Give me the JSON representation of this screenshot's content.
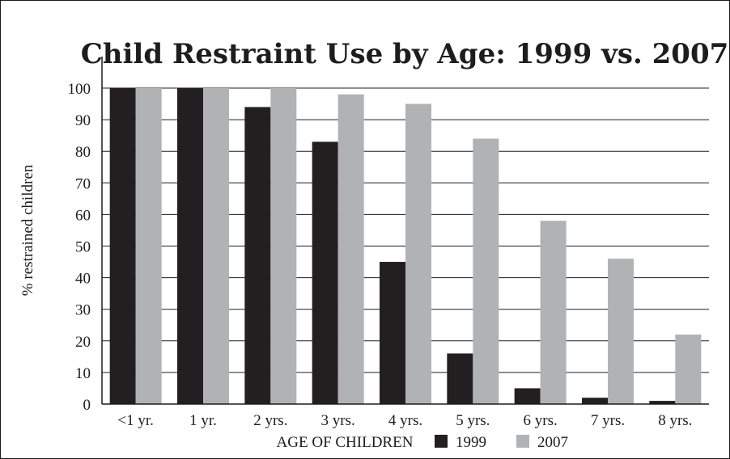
{
  "chart_data": {
    "type": "bar",
    "title": "Child Restraint Use by Age: 1999 vs. 2007",
    "xlabel": "AGE OF CHILDREN",
    "ylabel": "% restrained children",
    "ylim": [
      0,
      100
    ],
    "yticks": [
      "0",
      "10",
      "20",
      "30",
      "40",
      "50",
      "60",
      "70",
      "80",
      "90",
      "100"
    ],
    "grid": true,
    "legend_position": "bottom",
    "categories": [
      "<1 yr.",
      "1 yr.",
      "2 yrs.",
      "3 yrs.",
      "4 yrs.",
      "5 yrs.",
      "6 yrs.",
      "7 yrs.",
      "8 yrs."
    ],
    "series": [
      {
        "name": "1999",
        "color": "#231f20",
        "values": [
          100,
          100,
          94,
          83,
          45,
          16,
          5,
          2,
          1
        ]
      },
      {
        "name": "2007",
        "color": "#b1b2b4",
        "values": [
          100,
          100,
          100,
          98,
          95,
          84,
          58,
          46,
          22
        ]
      }
    ]
  }
}
